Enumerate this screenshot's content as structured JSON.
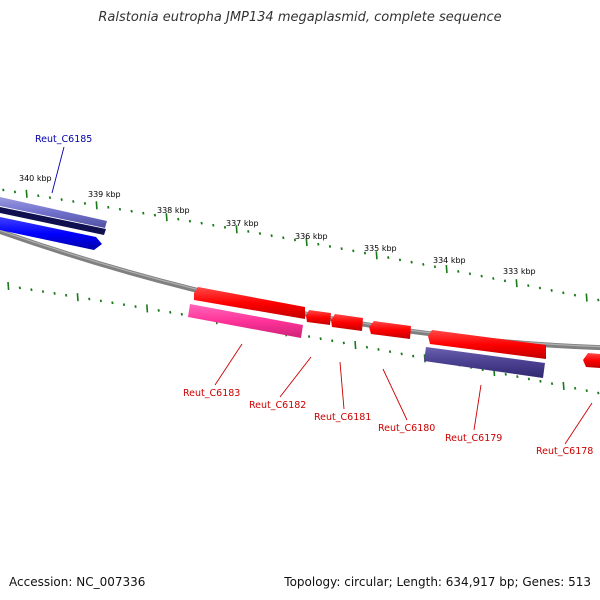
{
  "title": "Ralstonia eutropha JMP134 megaplasmid, complete sequence",
  "accession_label": "Accession: NC_007336",
  "summary_label": "Topology: circular; Length: 634,917 bp; Genes: 513",
  "scale_labels": [
    "340 kbp",
    "339 kbp",
    "338 kbp",
    "337 kbp",
    "336 kbp",
    "335 kbp",
    "334 kbp",
    "333 kbp"
  ],
  "genes": [
    {
      "label": "Reut_C6185",
      "color": "#0000aa"
    },
    {
      "label": "Reut_C6183",
      "color": "#cc0000"
    },
    {
      "label": "Reut_C6182",
      "color": "#cc0000"
    },
    {
      "label": "Reut_C6181",
      "color": "#cc0000"
    },
    {
      "label": "Reut_C6180",
      "color": "#cc0000"
    },
    {
      "label": "Reut_C6179",
      "color": "#cc0000"
    },
    {
      "label": "Reut_C6178",
      "color": "#cc0000"
    }
  ],
  "colors": {
    "backbone": "#808080",
    "ticks": "#1a7a1a",
    "forward_red": "#ff0000",
    "magenta": "#ff3399",
    "navy": "#4a4090",
    "blue": "#0000ff",
    "purple_light": "#7070cc",
    "dark_navy": "#101050"
  }
}
